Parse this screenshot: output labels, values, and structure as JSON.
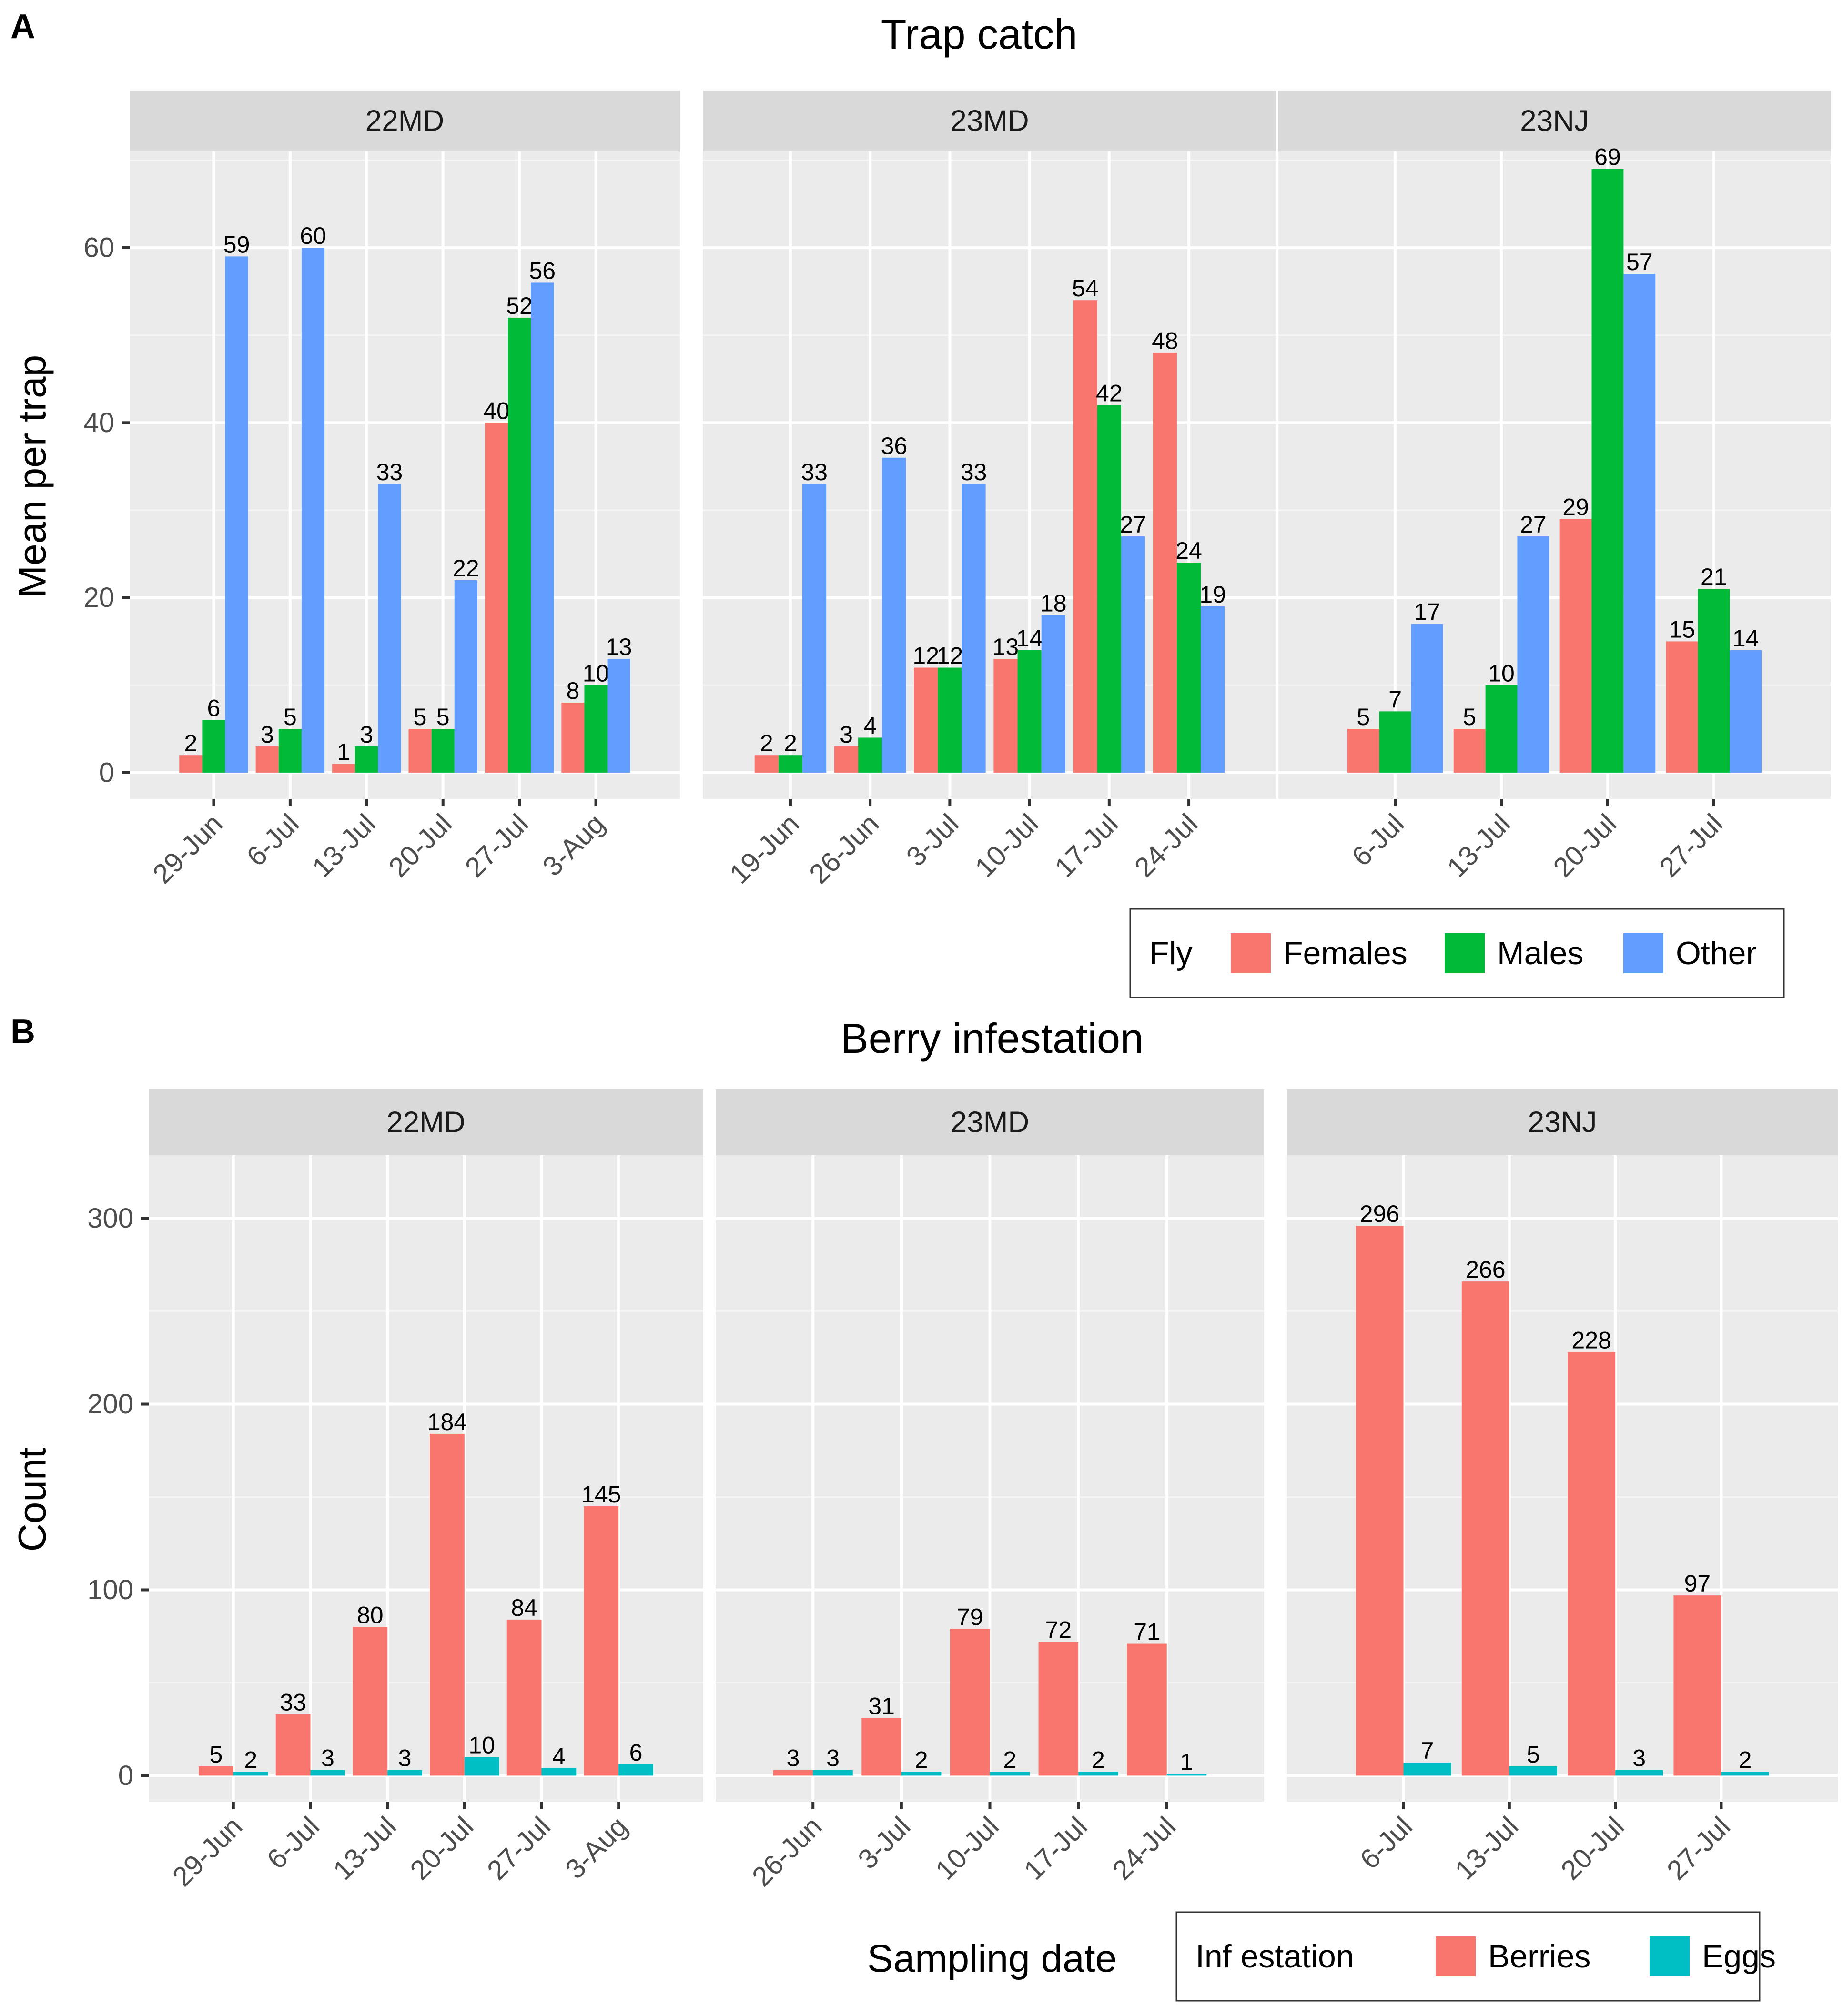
{
  "chart_data": [
    {
      "type": "bar",
      "panel_letter": "A",
      "title": "Trap catch",
      "ylabel": "Mean per trap",
      "xlabel": "",
      "ylim": [
        -3,
        71
      ],
      "yticks": [
        0,
        20,
        40,
        60
      ],
      "grid": true,
      "legend_position": "bottom-right",
      "legend": {
        "title": "Fly",
        "entries": [
          {
            "name": "Females",
            "color": "#F8766D"
          },
          {
            "name": "Males",
            "color": "#00BA38"
          },
          {
            "name": "Other",
            "color": "#619CFF"
          }
        ]
      },
      "facets": [
        {
          "name": "22MD",
          "categories": [
            "29-Jun",
            "6-Jul",
            "13-Jul",
            "20-Jul",
            "27-Jul",
            "3-Aug"
          ],
          "series": [
            {
              "name": "Females",
              "values": [
                2,
                3,
                1,
                5,
                40,
                8
              ]
            },
            {
              "name": "Males",
              "values": [
                6,
                5,
                3,
                5,
                52,
                10
              ]
            },
            {
              "name": "Other",
              "values": [
                59,
                60,
                33,
                22,
                56,
                13
              ]
            }
          ]
        },
        {
          "name": "23MD",
          "categories": [
            "19-Jun",
            "26-Jun",
            "3-Jul",
            "10-Jul",
            "17-Jul",
            "24-Jul"
          ],
          "series": [
            {
              "name": "Females",
              "values": [
                2,
                3,
                12,
                13,
                54,
                48
              ]
            },
            {
              "name": "Males",
              "values": [
                2,
                4,
                12,
                14,
                42,
                24
              ]
            },
            {
              "name": "Other",
              "values": [
                33,
                36,
                33,
                18,
                27,
                19
              ]
            }
          ]
        },
        {
          "name": "23NJ",
          "categories": [
            "6-Jul",
            "13-Jul",
            "20-Jul",
            "27-Jul"
          ],
          "series": [
            {
              "name": "Females",
              "values": [
                5,
                5,
                29,
                15
              ]
            },
            {
              "name": "Males",
              "values": [
                7,
                10,
                69,
                21
              ]
            },
            {
              "name": "Other",
              "values": [
                17,
                27,
                57,
                14
              ]
            }
          ]
        }
      ]
    },
    {
      "type": "bar",
      "panel_letter": "B",
      "title": "Berry infestation",
      "ylabel": "Count",
      "xlabel": "Sampling date",
      "ylim": [
        -14,
        334
      ],
      "yticks": [
        0,
        100,
        200,
        300
      ],
      "grid": true,
      "legend_position": "bottom-right",
      "legend": {
        "title": "Inf estation",
        "entries": [
          {
            "name": "Berries",
            "color": "#F8766D"
          },
          {
            "name": "Eggs",
            "color": "#00BFC4"
          }
        ]
      },
      "facets": [
        {
          "name": "22MD",
          "categories": [
            "29-Jun",
            "6-Jul",
            "13-Jul",
            "20-Jul",
            "27-Jul",
            "3-Aug"
          ],
          "series": [
            {
              "name": "Berries",
              "values": [
                5,
                33,
                80,
                184,
                84,
                145
              ]
            },
            {
              "name": "Eggs",
              "values": [
                2,
                3,
                3,
                10,
                4,
                6
              ]
            }
          ]
        },
        {
          "name": "23MD",
          "categories": [
            "26-Jun",
            "3-Jul",
            "10-Jul",
            "17-Jul",
            "24-Jul"
          ],
          "series": [
            {
              "name": "Berries",
              "values": [
                3,
                31,
                79,
                72,
                71
              ]
            },
            {
              "name": "Eggs",
              "values": [
                3,
                2,
                2,
                2,
                1
              ]
            }
          ]
        },
        {
          "name": "23NJ",
          "categories": [
            "6-Jul",
            "13-Jul",
            "20-Jul",
            "27-Jul"
          ],
          "series": [
            {
              "name": "Berries",
              "values": [
                296,
                266,
                228,
                97
              ]
            },
            {
              "name": "Eggs",
              "values": [
                7,
                5,
                3,
                2
              ]
            }
          ]
        }
      ]
    }
  ]
}
